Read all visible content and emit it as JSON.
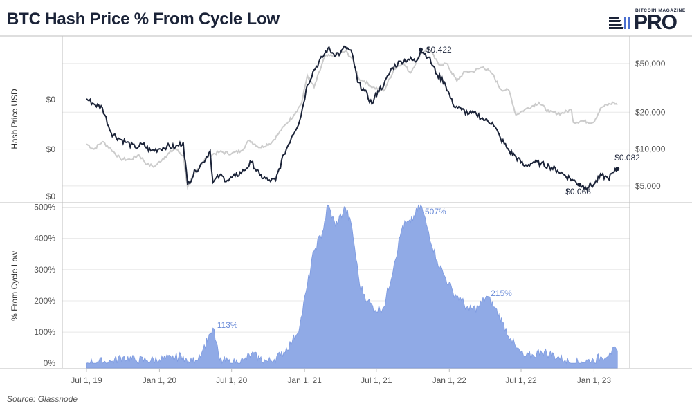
{
  "header": {
    "title": "BTC Hash Price % From Cycle Low",
    "brand_top": "BITCOIN MAGAZINE",
    "brand_main": "PRO"
  },
  "footer": {
    "source": "Source: Glassnode"
  },
  "colors": {
    "hash_price": "#1b2338",
    "btc_price": "#cccccc",
    "pct_fill": "#90aae6",
    "pct_stroke": "#7d9ae0",
    "annotation_blue": "#6a8bd8",
    "grid": "#e8e8e8",
    "divider": "#bdbdbd"
  },
  "chart_data": [
    {
      "type": "line",
      "panel": "top",
      "ylabel": "Hash Price USD",
      "left_axis_ticks": [
        "$0",
        "$0",
        "$0"
      ],
      "right_axis_ticks": [
        "$50,000",
        "$20,000",
        "$10,000",
        "$5,000"
      ],
      "right_axis_values": [
        50000,
        20000,
        10000,
        5000
      ],
      "right_axis_scale": "log",
      "right_axis_range": [
        3700,
        84000
      ],
      "left_axis_scale": "log",
      "left_axis_range": [
        0.052,
        0.51
      ],
      "series": [
        {
          "role": "hash_price",
          "axis": "left",
          "x": [
            "2019-07-01",
            "2019-07-20",
            "2019-08-10",
            "2019-09-01",
            "2019-09-20",
            "2019-10-10",
            "2019-11-01",
            "2019-11-20",
            "2019-12-10",
            "2020-01-01",
            "2020-01-20",
            "2020-02-10",
            "2020-03-01",
            "2020-03-12",
            "2020-04-01",
            "2020-04-20",
            "2020-05-08",
            "2020-05-15",
            "2020-06-01",
            "2020-06-20",
            "2020-07-10",
            "2020-08-01",
            "2020-08-20",
            "2020-09-10",
            "2020-10-01",
            "2020-10-20",
            "2020-11-10",
            "2020-12-01",
            "2020-12-20",
            "2021-01-08",
            "2021-01-25",
            "2021-02-15",
            "2021-03-01",
            "2021-03-15",
            "2021-04-01",
            "2021-04-14",
            "2021-05-01",
            "2021-05-15",
            "2021-06-01",
            "2021-06-20",
            "2021-07-05",
            "2021-07-20",
            "2021-08-10",
            "2021-09-01",
            "2021-09-20",
            "2021-10-10",
            "2021-10-21",
            "2021-11-10",
            "2021-12-01",
            "2021-12-20",
            "2022-01-10",
            "2022-02-01",
            "2022-02-20",
            "2022-03-10",
            "2022-04-01",
            "2022-04-20",
            "2022-05-10",
            "2022-06-01",
            "2022-06-18",
            "2022-07-10",
            "2022-08-01",
            "2022-08-20",
            "2022-09-10",
            "2022-10-01",
            "2022-10-20",
            "2022-11-10",
            "2022-11-25",
            "2022-12-10",
            "2022-12-31",
            "2023-01-20",
            "2023-02-05",
            "2023-02-20",
            "2023-03-01"
          ],
          "values": [
            0.215,
            0.2,
            0.19,
            0.135,
            0.125,
            0.118,
            0.11,
            0.115,
            0.105,
            0.108,
            0.112,
            0.11,
            0.118,
            0.066,
            0.08,
            0.09,
            0.105,
            0.068,
            0.075,
            0.07,
            0.074,
            0.08,
            0.09,
            0.075,
            0.07,
            0.07,
            0.1,
            0.13,
            0.16,
            0.26,
            0.32,
            0.38,
            0.43,
            0.4,
            0.4,
            0.44,
            0.4,
            0.27,
            0.24,
            0.2,
            0.24,
            0.26,
            0.33,
            0.36,
            0.37,
            0.36,
            0.422,
            0.38,
            0.3,
            0.27,
            0.2,
            0.185,
            0.175,
            0.175,
            0.16,
            0.155,
            0.125,
            0.105,
            0.097,
            0.085,
            0.09,
            0.088,
            0.085,
            0.08,
            0.075,
            0.07,
            0.066,
            0.064,
            0.066,
            0.075,
            0.072,
            0.078,
            0.082
          ]
        },
        {
          "role": "btc_price",
          "axis": "right",
          "x": [
            "2019-07-01",
            "2019-07-20",
            "2019-08-10",
            "2019-09-01",
            "2019-09-25",
            "2019-10-20",
            "2019-11-10",
            "2019-12-01",
            "2019-12-20",
            "2020-01-15",
            "2020-02-10",
            "2020-03-01",
            "2020-03-12",
            "2020-04-01",
            "2020-05-01",
            "2020-06-01",
            "2020-07-01",
            "2020-07-25",
            "2020-08-15",
            "2020-09-10",
            "2020-10-10",
            "2020-10-25",
            "2020-11-15",
            "2020-12-05",
            "2020-12-25",
            "2021-01-08",
            "2021-01-25",
            "2021-02-21",
            "2021-03-15",
            "2021-04-14",
            "2021-05-01",
            "2021-05-19",
            "2021-06-01",
            "2021-06-22",
            "2021-07-20",
            "2021-08-15",
            "2021-09-05",
            "2021-09-25",
            "2021-10-20",
            "2021-11-10",
            "2021-12-05",
            "2021-12-25",
            "2022-01-20",
            "2022-02-10",
            "2022-03-01",
            "2022-03-28",
            "2022-04-20",
            "2022-05-10",
            "2022-06-01",
            "2022-06-18",
            "2022-07-10",
            "2022-08-15",
            "2022-09-10",
            "2022-10-10",
            "2022-11-05",
            "2022-11-10",
            "2022-12-01",
            "2022-12-30",
            "2023-01-20",
            "2023-02-20",
            "2023-03-01"
          ],
          "values": [
            11000,
            10000,
            11500,
            10000,
            8300,
            8200,
            9000,
            7500,
            7200,
            8700,
            10100,
            8800,
            4900,
            6500,
            8800,
            9500,
            9200,
            9700,
            11800,
            10300,
            11300,
            13100,
            16000,
            19000,
            24000,
            40000,
            32000,
            57000,
            58000,
            63000,
            55000,
            37000,
            36000,
            32000,
            30000,
            45000,
            51000,
            42000,
            60000,
            67000,
            49000,
            50000,
            36000,
            43000,
            43000,
            47000,
            41000,
            31000,
            30000,
            19000,
            21000,
            24000,
            20000,
            19500,
            21000,
            16500,
            17000,
            16500,
            22000,
            24000,
            23000
          ]
        }
      ],
      "annotations": [
        {
          "text": "$0.422",
          "x": "2021-10-21",
          "y": 0.422
        },
        {
          "text": "$0.066",
          "x": "2022-11-25",
          "y": 0.066
        },
        {
          "text": "$0.082",
          "x": "2023-03-01",
          "y": 0.082
        }
      ]
    },
    {
      "type": "area",
      "panel": "bottom",
      "ylabel": "% From Cycle Low",
      "x_ticks": [
        "Jul 1, 19",
        "Jan 1, 20",
        "Jul 1, 20",
        "Jan 1, 21",
        "Jul 1, 21",
        "Jan 1, 22",
        "Jul 1, 22",
        "Jan 1, 23"
      ],
      "x_tick_dates": [
        "2019-07-01",
        "2020-01-01",
        "2020-07-01",
        "2021-01-01",
        "2021-07-01",
        "2022-01-01",
        "2022-07-01",
        "2023-01-01"
      ],
      "x_range": [
        "2019-05-01",
        "2023-04-01"
      ],
      "y_ticks": [
        "0%",
        "100%",
        "200%",
        "300%",
        "400%",
        "500%"
      ],
      "y_tick_values": [
        0,
        100,
        200,
        300,
        400,
        500
      ],
      "ylim": [
        -15,
        510
      ],
      "series": [
        {
          "role": "pct_from_cycle_low",
          "x": [
            "2019-07-01",
            "2019-08-01",
            "2019-09-01",
            "2019-10-01",
            "2019-11-01",
            "2019-12-01",
            "2020-01-01",
            "2020-02-01",
            "2020-03-01",
            "2020-03-12",
            "2020-04-01",
            "2020-04-20",
            "2020-05-08",
            "2020-05-15",
            "2020-06-01",
            "2020-07-01",
            "2020-08-01",
            "2020-08-20",
            "2020-09-10",
            "2020-10-01",
            "2020-11-01",
            "2020-12-01",
            "2020-12-20",
            "2021-01-08",
            "2021-01-25",
            "2021-02-15",
            "2021-03-01",
            "2021-03-20",
            "2021-04-14",
            "2021-05-01",
            "2021-05-20",
            "2021-06-10",
            "2021-06-28",
            "2021-07-20",
            "2021-08-15",
            "2021-09-05",
            "2021-09-25",
            "2021-10-21",
            "2021-11-10",
            "2021-12-01",
            "2021-12-20",
            "2022-01-10",
            "2022-02-01",
            "2022-02-20",
            "2022-03-15",
            "2022-04-05",
            "2022-04-25",
            "2022-05-15",
            "2022-06-05",
            "2022-06-18",
            "2022-07-10",
            "2022-08-01",
            "2022-08-20",
            "2022-09-10",
            "2022-10-01",
            "2022-10-20",
            "2022-11-10",
            "2022-12-01",
            "2022-12-31",
            "2023-01-20",
            "2023-02-10",
            "2023-03-01"
          ],
          "values": [
            0,
            5,
            5,
            20,
            10,
            10,
            12,
            15,
            25,
            0,
            10,
            45,
            95,
            113,
            10,
            0,
            8,
            30,
            15,
            5,
            25,
            70,
            120,
            250,
            360,
            420,
            507,
            440,
            500,
            430,
            250,
            200,
            170,
            180,
            320,
            440,
            450,
            507,
            420,
            330,
            280,
            230,
            200,
            170,
            180,
            215,
            180,
            130,
            80,
            50,
            20,
            25,
            40,
            30,
            20,
            10,
            0,
            5,
            10,
            20,
            35,
            40
          ]
        }
      ],
      "annotations": [
        {
          "text": "113%",
          "x": "2020-05-15",
          "y": 113
        },
        {
          "text": "507%",
          "x": "2021-10-21",
          "y": 507
        },
        {
          "text": "215%",
          "x": "2022-04-05",
          "y": 215
        }
      ]
    }
  ]
}
